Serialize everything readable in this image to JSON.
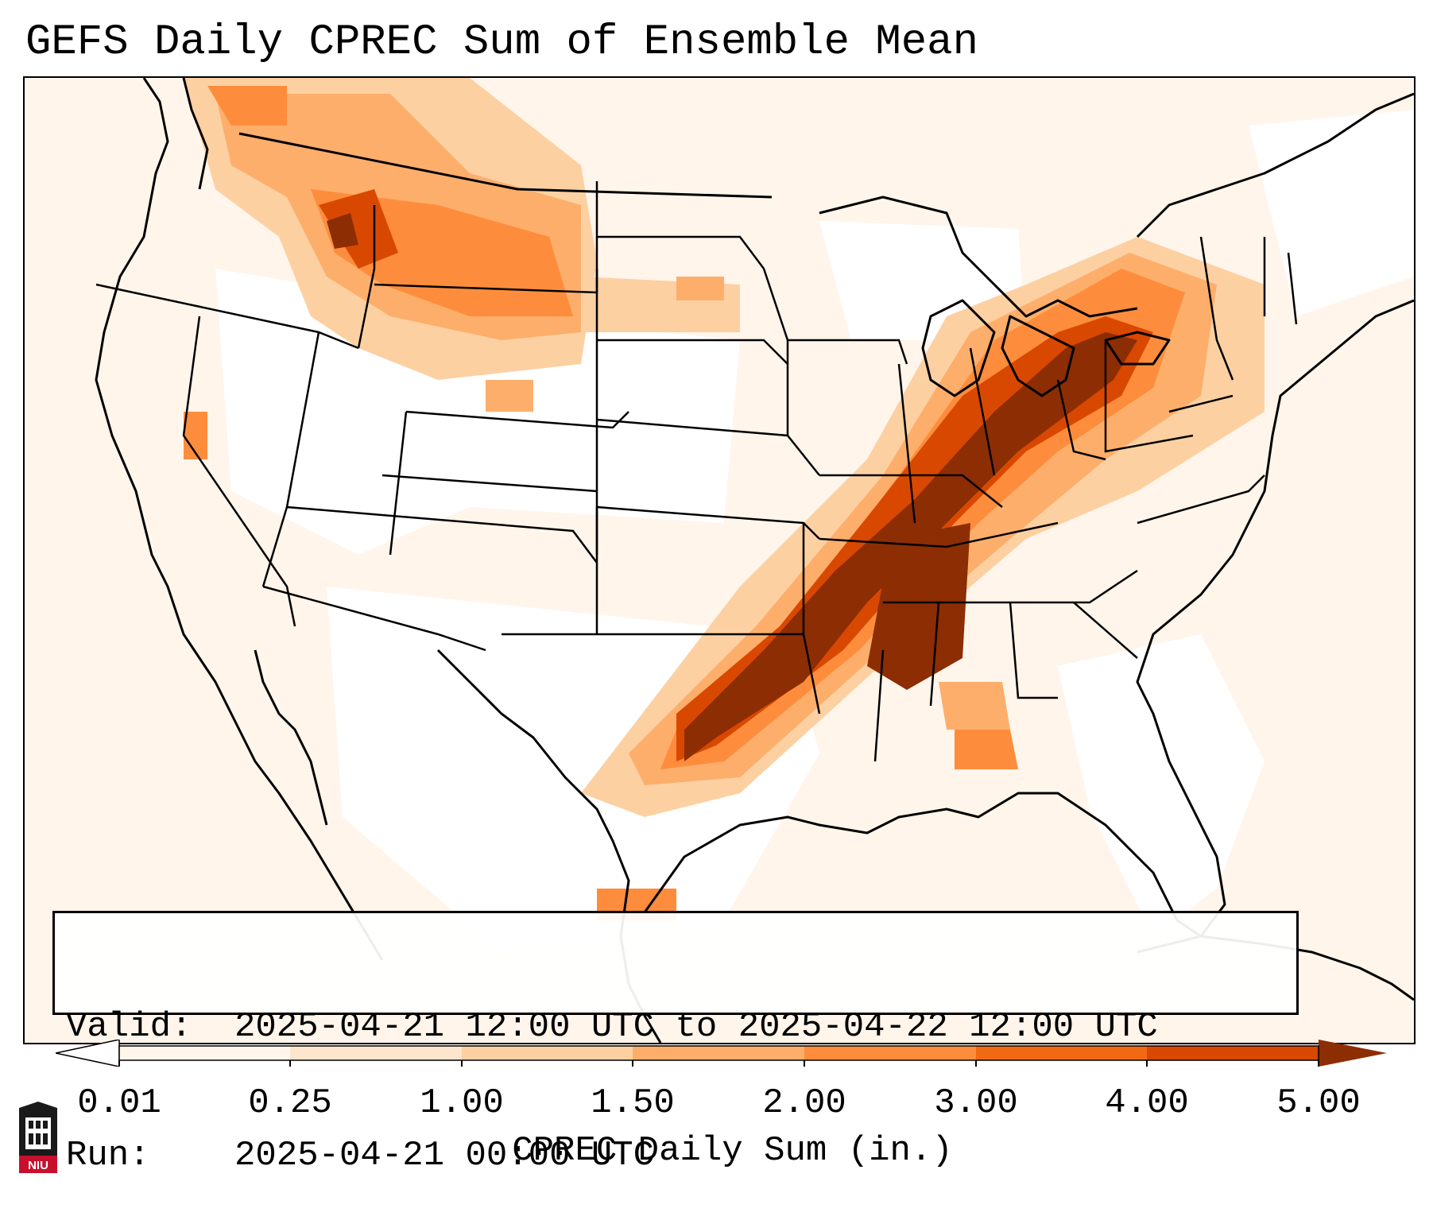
{
  "title": "GEFS Daily CPREC Sum of Ensemble Mean",
  "info": {
    "valid_label": "Valid:",
    "valid_value": "2025-04-21 12:00 UTC to 2025-04-22 12:00 UTC",
    "run_label": "Run:",
    "run_value": "2025-04-21 00:00 UTC"
  },
  "colorbar": {
    "label": "CPREC Daily Sum (in.)",
    "ticks": [
      "0.01",
      "0.25",
      "1.00",
      "1.50",
      "2.00",
      "3.00",
      "4.00",
      "5.00"
    ],
    "colors": [
      "#fff5eb",
      "#fee6ce",
      "#fdd0a2",
      "#fdae6b",
      "#fd8d3c",
      "#f16913",
      "#d94801",
      "#8c2d04"
    ],
    "extend_min_color": "#ffffff",
    "extend_max_color": "#8c2d04"
  },
  "logo": {
    "text": "NIU"
  }
}
